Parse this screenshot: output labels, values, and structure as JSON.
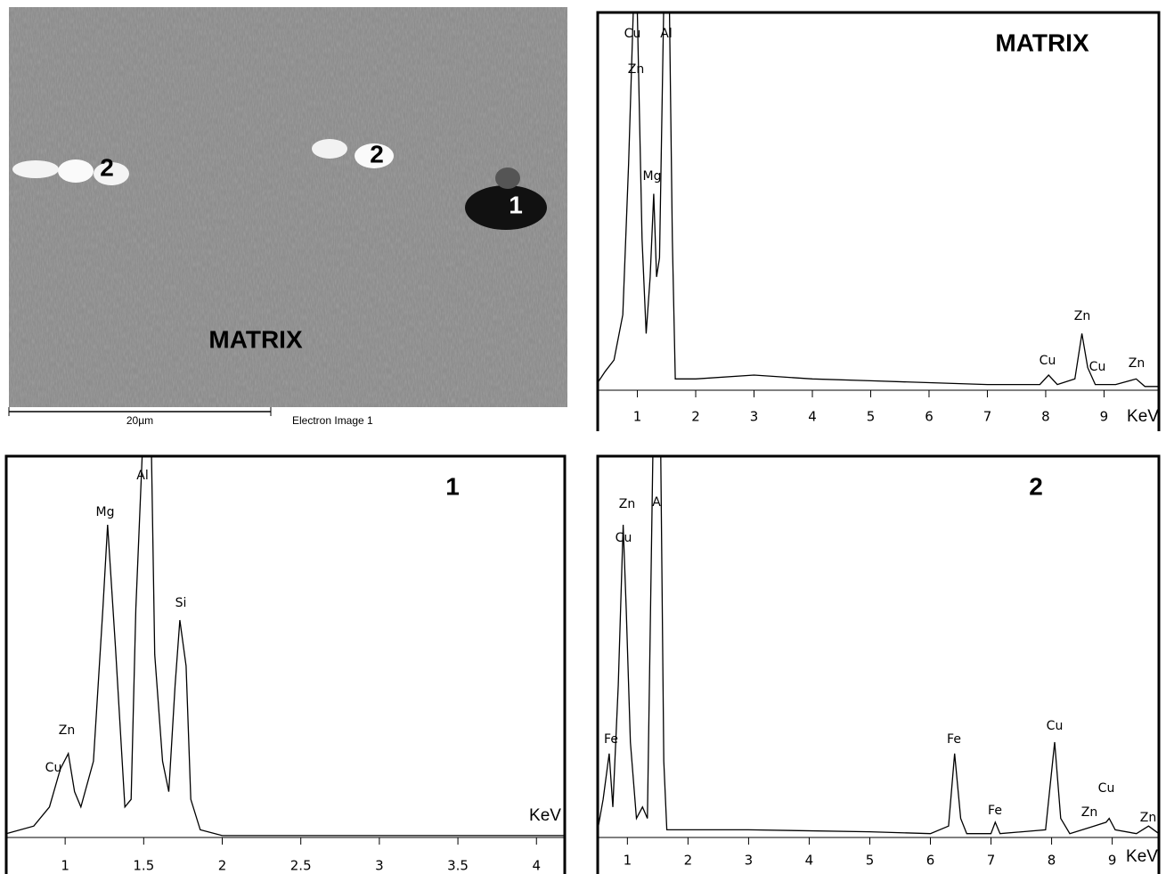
{
  "image": {
    "labels": [
      "2",
      "2",
      "1",
      "MATRIX"
    ],
    "scale_bar": "20µm",
    "caption": "Electron Image 1"
  },
  "chart_data": [
    {
      "type": "line",
      "title": "MATRIX",
      "x_label": "KeV",
      "color": "#000000",
      "x": [
        0.32,
        0.45,
        0.6,
        0.75,
        0.85,
        0.93,
        1.0,
        1.08,
        1.15,
        1.22,
        1.28,
        1.33,
        1.38,
        1.45,
        1.55,
        1.6,
        1.65,
        2,
        3,
        4,
        5,
        6,
        7,
        7.9,
        8.05,
        8.2,
        8.5,
        8.62,
        8.72,
        8.85,
        9.2,
        9.55,
        9.7,
        9.94
      ],
      "values": [
        2,
        5,
        8,
        20,
        60,
        100,
        100,
        40,
        15,
        30,
        52,
        30,
        35,
        100,
        100,
        40,
        3,
        3,
        4,
        3,
        2.5,
        2,
        1.5,
        1.5,
        4,
        1.5,
        3,
        15,
        6,
        1.5,
        1.5,
        3,
        1,
        1
      ],
      "xlim": [
        0.32,
        9.94
      ],
      "xticks": [
        1,
        2,
        3,
        4,
        5,
        6,
        7,
        8,
        9
      ],
      "ylim": [
        0,
        100
      ],
      "peak_labels": [
        "Cu",
        "Zn",
        "Al",
        "Mg",
        "Zn",
        "Cu",
        "Cu",
        "Zn"
      ]
    },
    {
      "type": "line",
      "title": "1",
      "x_label": "KeV",
      "color": "#000000",
      "x": [
        0.625,
        0.8,
        0.9,
        0.97,
        1.02,
        1.06,
        1.1,
        1.18,
        1.24,
        1.27,
        1.32,
        1.38,
        1.42,
        1.45,
        1.49,
        1.55,
        1.57,
        1.62,
        1.66,
        1.7,
        1.73,
        1.77,
        1.8,
        1.86,
        2,
        3,
        4.18
      ],
      "values": [
        1,
        3,
        8,
        18,
        22,
        12,
        8,
        20,
        60,
        82,
        50,
        8,
        10,
        60,
        100,
        100,
        48,
        20,
        12,
        40,
        57,
        45,
        10,
        2,
        0.5,
        0.5,
        0.5
      ],
      "xlim": [
        0.625,
        4.18
      ],
      "xticks": [
        1,
        1.5,
        2,
        2.5,
        3,
        3.5,
        4
      ],
      "ylim": [
        0,
        100
      ],
      "peak_labels": [
        "Al",
        "Mg",
        "Si",
        "Zn",
        "Cu"
      ]
    },
    {
      "type": "line",
      "title": "2",
      "x_label": "KeV",
      "color": "#000000",
      "x": [
        0.51,
        0.6,
        0.7,
        0.76,
        0.85,
        0.93,
        0.98,
        1.05,
        1.15,
        1.25,
        1.33,
        1.42,
        1.55,
        1.6,
        1.65,
        2,
        3,
        5,
        6,
        6.3,
        6.4,
        6.5,
        6.6,
        7,
        7.07,
        7.15,
        7.9,
        8.05,
        8.15,
        8.3,
        8.7,
        8.9,
        8.95,
        9.05,
        9.4,
        9.6,
        9.77
      ],
      "values": [
        2,
        10,
        22,
        8,
        40,
        82,
        60,
        25,
        5,
        8,
        5,
        100,
        100,
        20,
        2,
        2,
        2,
        1.5,
        1,
        3,
        22,
        5,
        1,
        1,
        4,
        1,
        2,
        25,
        5,
        1,
        3,
        4,
        5,
        2,
        1,
        3,
        1
      ],
      "xlim": [
        0.51,
        9.77
      ],
      "xticks": [
        1,
        2,
        3,
        4,
        5,
        6,
        7,
        8,
        9
      ],
      "ylim": [
        0,
        100
      ],
      "peak_labels": [
        "A",
        "Zn",
        "Cu",
        "Fe",
        "Fe",
        "Fe",
        "Cu",
        "Cu",
        "Zn",
        "Zn"
      ]
    }
  ]
}
